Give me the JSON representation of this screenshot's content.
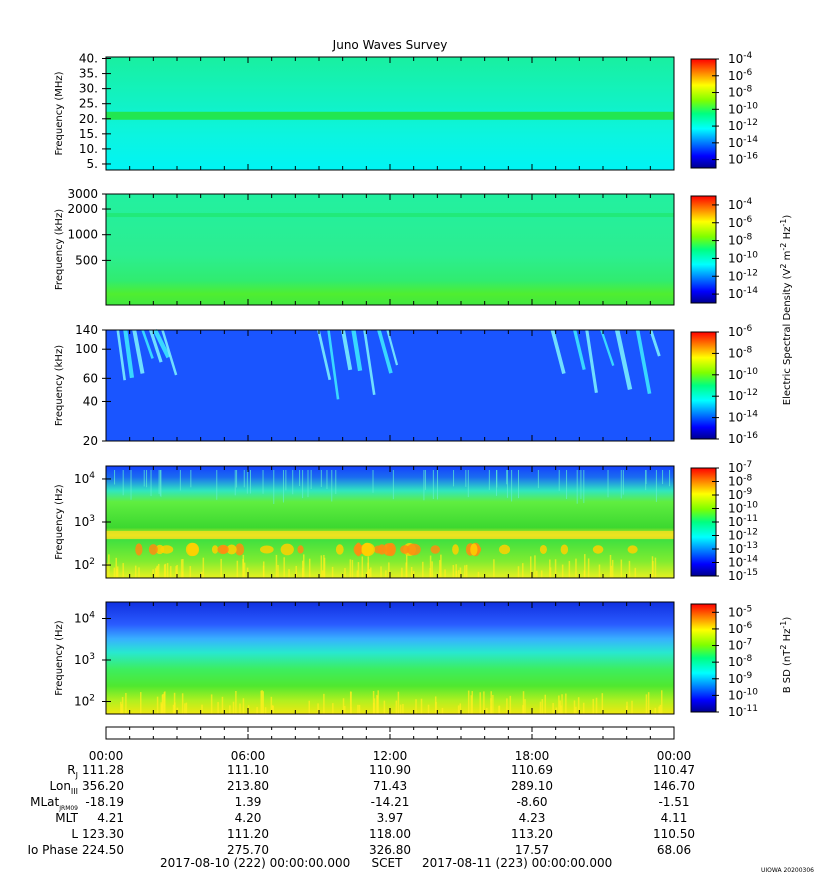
{
  "chart_data": [
    {
      "type": "heatmap",
      "title": "Juno Waves Survey",
      "ylabel": "Frequency (MHz)",
      "yscale": "linear",
      "ylim": [
        3,
        40.5
      ],
      "yticks": [
        {
          "v": 40,
          "label": "40."
        },
        {
          "v": 35,
          "label": "35."
        },
        {
          "v": 30,
          "label": "30."
        },
        {
          "v": 25,
          "label": "25."
        },
        {
          "v": 20,
          "label": "20."
        },
        {
          "v": 15,
          "label": "15."
        },
        {
          "v": 10,
          "label": "10."
        },
        {
          "v": 5,
          "label": "5."
        }
      ],
      "colorbar": {
        "min_exp": -17,
        "max_exp": -4,
        "ticks": [
          {
            "e": -4,
            "label": "10^-4"
          },
          {
            "e": -6,
            "label": "10^-6"
          },
          {
            "e": -8,
            "label": "10^-8"
          },
          {
            "e": -10,
            "label": "10^-10"
          },
          {
            "e": -12,
            "label": "10^-12"
          },
          {
            "e": -14,
            "label": "10^-14"
          },
          {
            "e": -16,
            "label": "10^-16"
          }
        ]
      },
      "features": [
        {
          "y": 21,
          "kind": "band",
          "desc": "green band"
        }
      ]
    },
    {
      "type": "heatmap",
      "ylabel": "Frequency (kHz)",
      "yscale": "log",
      "ylim": [
        150,
        3000
      ],
      "yticks": [
        {
          "v": 3000,
          "label": "3000"
        },
        {
          "v": 2000,
          "label": "2000"
        },
        {
          "v": 1000,
          "label": "1000"
        },
        {
          "v": 500,
          "label": "500"
        }
      ],
      "colorbar": {
        "min_exp": -15,
        "max_exp": -3,
        "ticks": [
          {
            "e": -4,
            "label": "10^-4"
          },
          {
            "e": -6,
            "label": "10^-6"
          },
          {
            "e": -8,
            "label": "10^-8"
          },
          {
            "e": -10,
            "label": "10^-10"
          },
          {
            "e": -12,
            "label": "10^-12"
          },
          {
            "e": -14,
            "label": "10^-14"
          }
        ]
      },
      "features": [
        {
          "y": 1700,
          "kind": "line"
        }
      ]
    },
    {
      "type": "heatmap",
      "ylabel": "Frequency (kHz)",
      "yscale": "log",
      "ylim": [
        20,
        140
      ],
      "yticks": [
        {
          "v": 140,
          "label": "140"
        },
        {
          "v": 100,
          "label": "100"
        },
        {
          "v": 60,
          "label": "60"
        },
        {
          "v": 40,
          "label": "40"
        },
        {
          "v": 20,
          "label": "20"
        }
      ],
      "colorbar": {
        "min_exp": -16,
        "max_exp": -6,
        "ticks": [
          {
            "e": -6,
            "label": "10^-6"
          },
          {
            "e": -8,
            "label": "10^-8"
          },
          {
            "e": -10,
            "label": "10^-10"
          },
          {
            "e": -12,
            "label": "10^-12"
          },
          {
            "e": -14,
            "label": "10^-14"
          },
          {
            "e": -16,
            "label": "10^-16"
          }
        ]
      },
      "features": [
        {
          "kind": "bursts",
          "x_hours": [
            [
              0.5,
              2.5
            ],
            [
              9.0,
              12.0
            ],
            [
              19.0,
              23.0
            ]
          ]
        }
      ]
    },
    {
      "type": "heatmap",
      "ylabel": "Frequency (Hz)",
      "yscale": "log",
      "ylim": [
        50,
        20000
      ],
      "yticks": [
        {
          "v": 10000,
          "label": "10^4"
        },
        {
          "v": 1000,
          "label": "10^3"
        },
        {
          "v": 100,
          "label": "10^2"
        }
      ],
      "colorbar": {
        "min_exp": -15,
        "max_exp": -7,
        "ticks": [
          {
            "e": -7,
            "label": "10^-7"
          },
          {
            "e": -8,
            "label": "10^-8"
          },
          {
            "e": -9,
            "label": "10^-9"
          },
          {
            "e": -10,
            "label": "10^-10"
          },
          {
            "e": -11,
            "label": "10^-11"
          },
          {
            "e": -12,
            "label": "10^-12"
          },
          {
            "e": -13,
            "label": "10^-13"
          },
          {
            "e": -14,
            "label": "10^-14"
          },
          {
            "e": -15,
            "label": "10^-15"
          }
        ]
      },
      "features": [
        {
          "y": 500,
          "kind": "band"
        },
        {
          "y": 230,
          "kind": "spots"
        }
      ]
    },
    {
      "type": "heatmap",
      "ylabel": "Frequency (Hz)",
      "yscale": "log",
      "ylim": [
        50,
        25000
      ],
      "yticks": [
        {
          "v": 10000,
          "label": "10^4"
        },
        {
          "v": 1000,
          "label": "10^3"
        },
        {
          "v": 100,
          "label": "10^2"
        }
      ],
      "colorbar": {
        "min_exp": -11,
        "max_exp": -4.5,
        "ticks": [
          {
            "e": -5,
            "label": "10^-5"
          },
          {
            "e": -6,
            "label": "10^-6"
          },
          {
            "e": -7,
            "label": "10^-7"
          },
          {
            "e": -8,
            "label": "10^-8"
          },
          {
            "e": -9,
            "label": "10^-9"
          },
          {
            "e": -10,
            "label": "10^-10"
          },
          {
            "e": -11,
            "label": "10^-11"
          }
        ]
      }
    }
  ],
  "colorbar_titles": {
    "electric": "Electric Spectral Density (V^2 m^-2 Hz^-1)",
    "magnetic": "B SD (nT^2 Hz^-1)"
  },
  "time_axis": {
    "start": "2017-08-10 (222) 00:00:00.000",
    "end": "2017-08-11 (223) 00:00:00.000",
    "scet_label": "SCET",
    "hours": [
      0,
      6,
      12,
      18,
      24
    ],
    "tick_labels": [
      "00:00",
      "06:00",
      "12:00",
      "18:00",
      "00:00"
    ]
  },
  "ephemeris": [
    {
      "label": "R",
      "sub": "J",
      "values": [
        "111.28",
        "111.10",
        "110.90",
        "110.69",
        "110.47"
      ]
    },
    {
      "label": "Lon",
      "sub": "III",
      "values": [
        "356.20",
        "213.80",
        "71.43",
        "289.10",
        "146.70"
      ]
    },
    {
      "label": "MLat",
      "sub": "JRM09",
      "values": [
        "-18.19",
        "1.39",
        "-14.21",
        "-8.60",
        "-1.51"
      ]
    },
    {
      "label": "MLT",
      "sub": "",
      "values": [
        "4.21",
        "4.20",
        "3.97",
        "4.23",
        "4.11"
      ]
    },
    {
      "label": "L",
      "sub": "",
      "values": [
        "123.30",
        "111.20",
        "118.00",
        "113.20",
        "110.50"
      ]
    },
    {
      "label": "Io Phase",
      "sub": "",
      "values": [
        "224.50",
        "275.70",
        "326.80",
        "17.57",
        "68.06"
      ]
    }
  ],
  "footer": {
    "credit": "UIOWA 20200306"
  }
}
